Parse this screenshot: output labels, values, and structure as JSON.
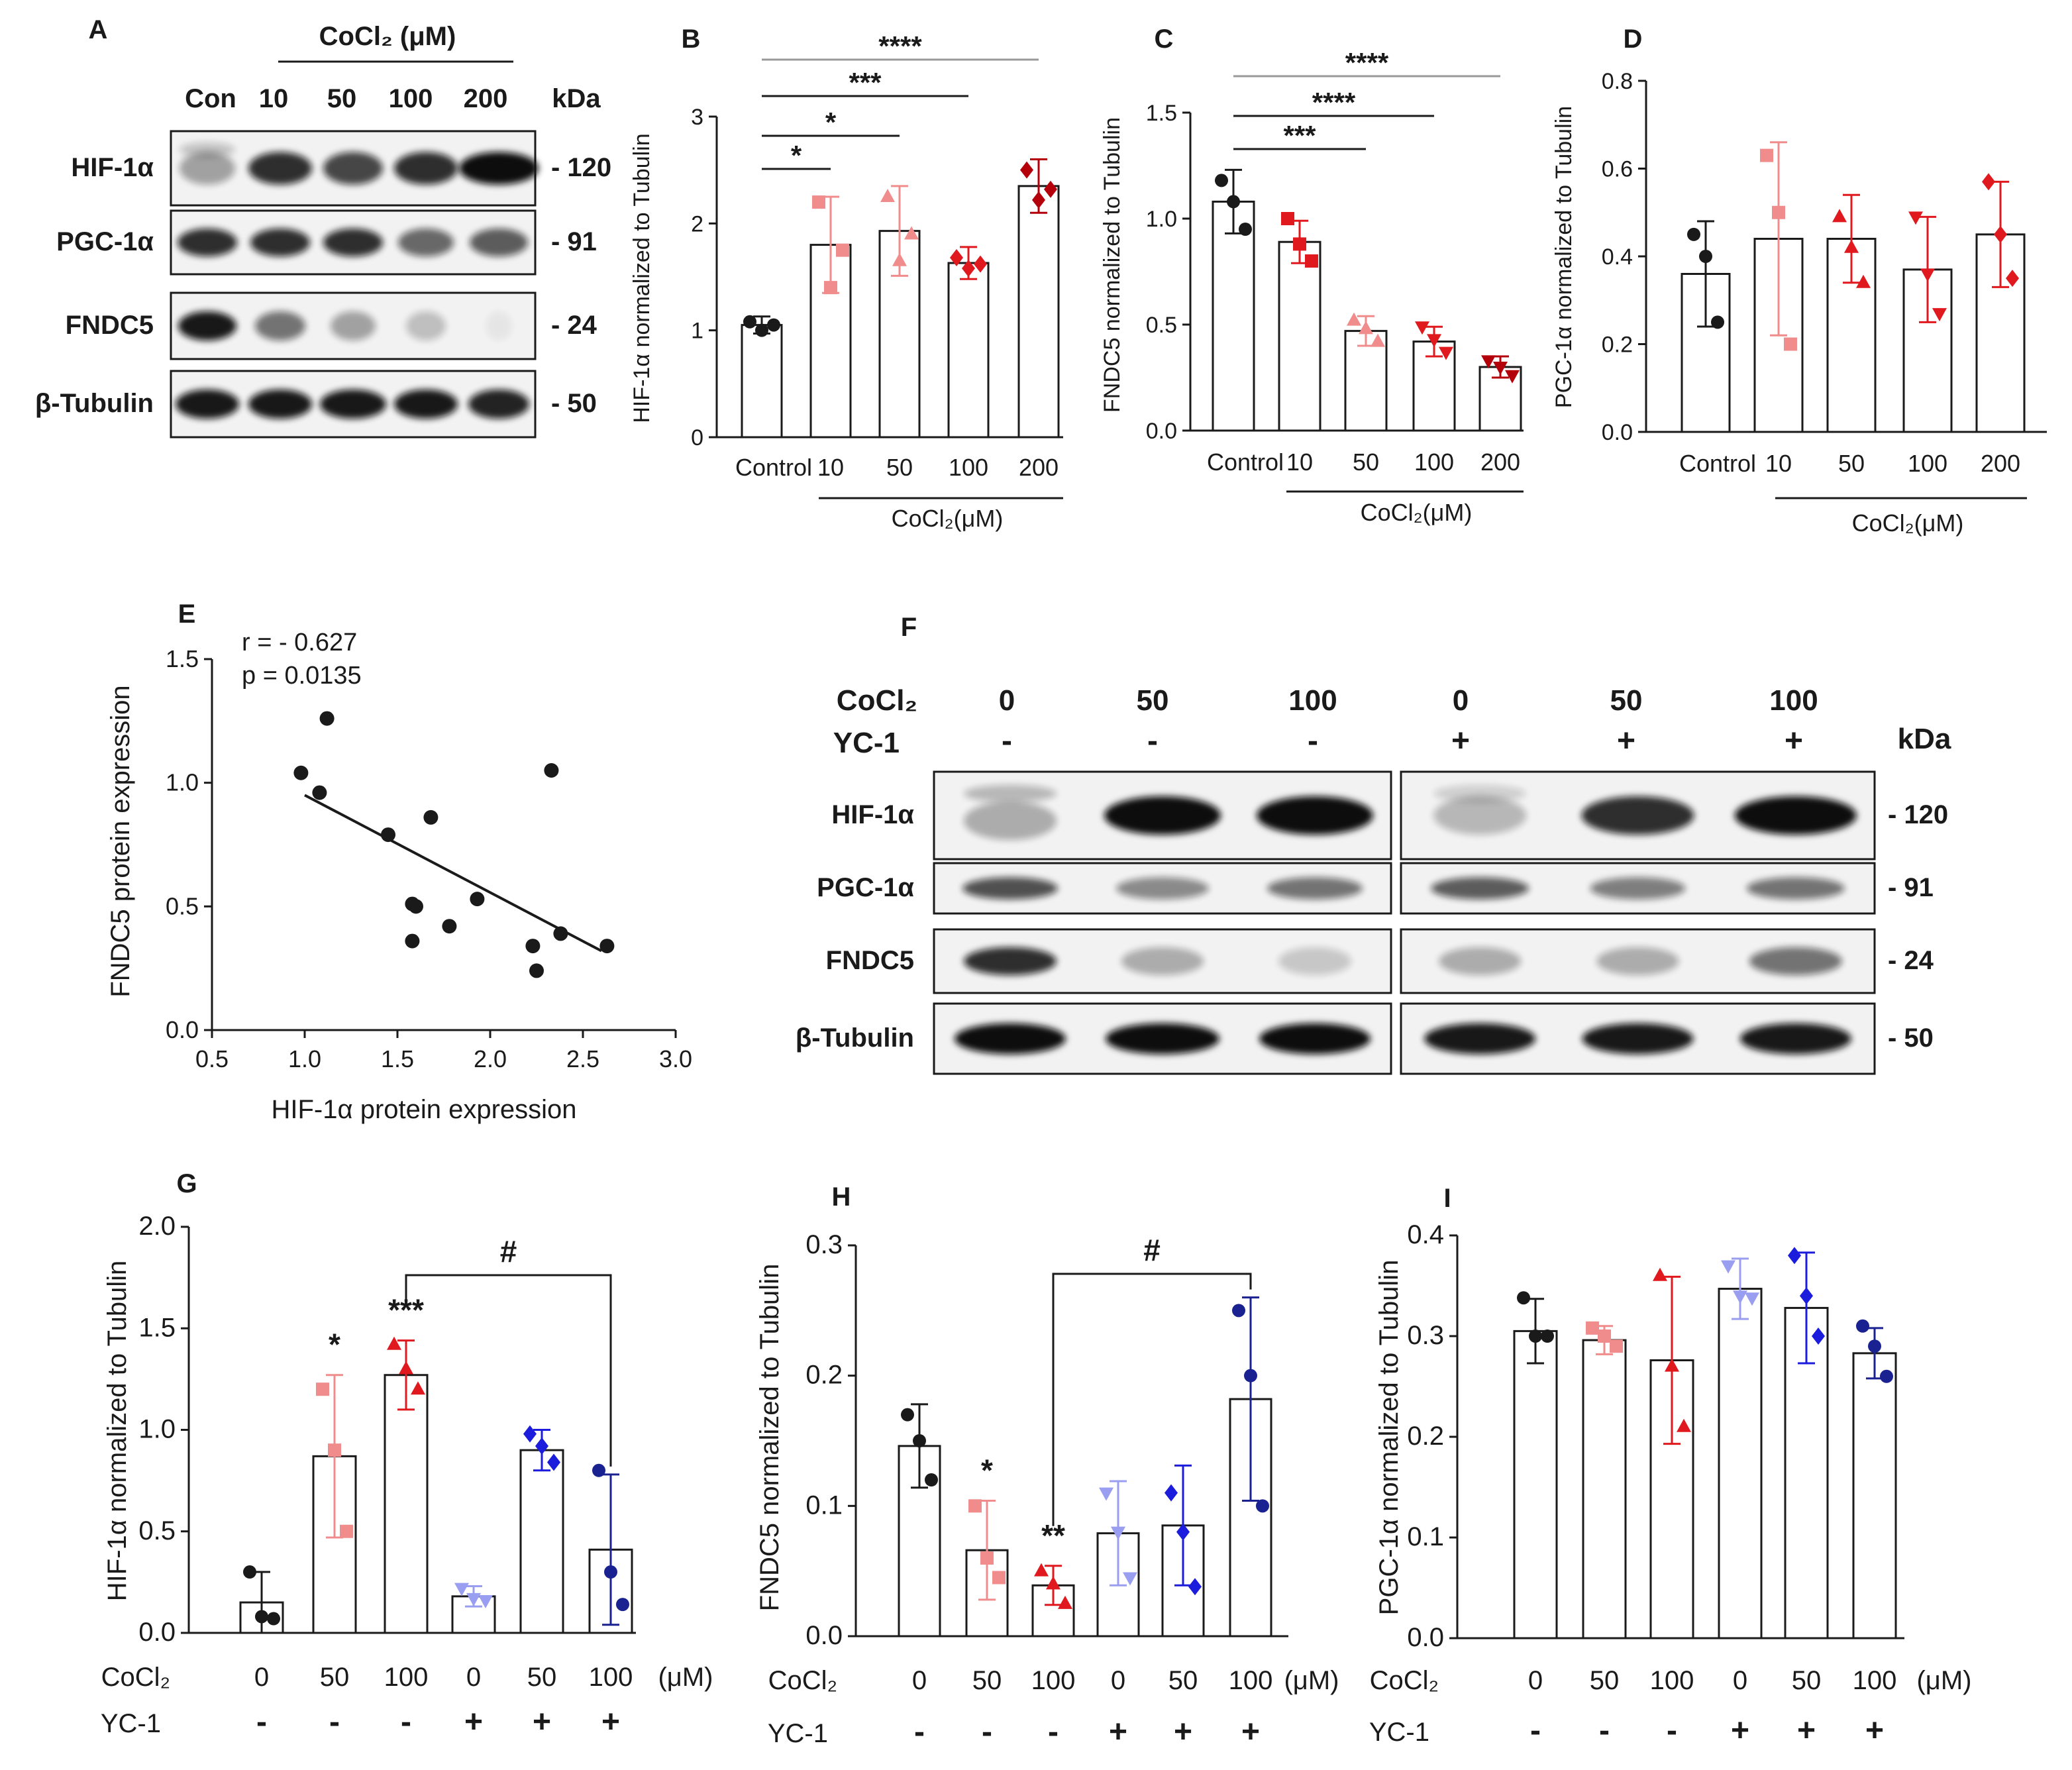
{
  "colors": {
    "black": "#1a1a1a",
    "pink": "#f08c8c",
    "red": "#e0191e",
    "darkred": "#b4000a",
    "lightblue": "#9a9ef0",
    "blue": "#1c1cdc",
    "navy": "#1a2190",
    "sigline": "#999999"
  },
  "blotA": {
    "label": "A",
    "header": "CoCl₂ (μM)",
    "lanes": [
      "Con",
      "10",
      "50",
      "100",
      "200"
    ],
    "kda_label": "kDa",
    "rows": [
      {
        "name": "HIF-1α",
        "kda": "- 120"
      },
      {
        "name": "PGC-1α",
        "kda": "- 91"
      },
      {
        "name": "FNDC5",
        "kda": "- 24"
      },
      {
        "name": "β-Tubulin",
        "kda": "- 50"
      }
    ]
  },
  "blotF": {
    "label": "F",
    "cocl2_label": "CoCl₂",
    "yc1_label": "YC-1",
    "cocl2": [
      "0",
      "50",
      "100",
      "0",
      "50",
      "100"
    ],
    "yc1": [
      "-",
      "-",
      "-",
      "+",
      "+",
      "+"
    ],
    "kda_label": "kDa",
    "rows": [
      {
        "name": "HIF-1α",
        "kda": "- 120"
      },
      {
        "name": "PGC-1α",
        "kda": "- 91"
      },
      {
        "name": "FNDC5",
        "kda": "- 24"
      },
      {
        "name": "β-Tubulin",
        "kda": "- 50"
      }
    ]
  },
  "chart_data": [
    {
      "id": "B",
      "label": "B",
      "type": "bar",
      "ylabel": "HIF-1α normalized to Tubulin",
      "ylim": [
        0,
        3
      ],
      "ticks": [
        "0",
        "1",
        "2",
        "3"
      ],
      "categories": [
        "Control",
        "10",
        "50",
        "100",
        "200"
      ],
      "group_label": "CoCl₂(μM)",
      "values": [
        1.05,
        1.8,
        1.93,
        1.63,
        2.35
      ],
      "errors": [
        0.08,
        0.45,
        0.42,
        0.15,
        0.25
      ],
      "points": [
        [
          1.08,
          1.0,
          1.05
        ],
        [
          2.2,
          1.4,
          1.75
        ],
        [
          2.25,
          1.65,
          1.9
        ],
        [
          1.68,
          1.58,
          1.62
        ],
        [
          2.5,
          2.22,
          2.32
        ]
      ],
      "sig": [
        {
          "text": "*",
          "from": 0,
          "to": 1
        },
        {
          "text": "*",
          "from": 0,
          "to": 2
        },
        {
          "text": "***",
          "from": 0,
          "to": 3
        },
        {
          "text": "****",
          "from": 0,
          "to": 4
        }
      ]
    },
    {
      "id": "C",
      "label": "C",
      "type": "bar",
      "ylabel": "FNDC5 normalized to Tubulin",
      "ylim": [
        0,
        1.5
      ],
      "ticks": [
        "0.0",
        "0.5",
        "1.0",
        "1.5"
      ],
      "categories": [
        "Control",
        "10",
        "50",
        "100",
        "200"
      ],
      "group_label": "CoCl₂(μM)",
      "values": [
        1.08,
        0.89,
        0.47,
        0.42,
        0.3
      ],
      "errors": [
        0.15,
        0.1,
        0.07,
        0.07,
        0.05
      ],
      "points": [
        [
          1.18,
          1.08,
          0.95
        ],
        [
          1.0,
          0.88,
          0.8
        ],
        [
          0.52,
          0.48,
          0.42
        ],
        [
          0.49,
          0.43,
          0.37
        ],
        [
          0.33,
          0.3,
          0.26
        ]
      ],
      "sig": [
        {
          "text": "***",
          "from": 0,
          "to": 2
        },
        {
          "text": "****",
          "from": 0,
          "to": 3
        },
        {
          "text": "****",
          "from": 0,
          "to": 4
        }
      ]
    },
    {
      "id": "D",
      "label": "D",
      "type": "bar",
      "ylabel": "PGC-1α normalized to Tubulin",
      "ylim": [
        0,
        0.8
      ],
      "ticks": [
        "0.0",
        "0.2",
        "0.4",
        "0.6",
        "0.8"
      ],
      "categories": [
        "Control",
        "10",
        "50",
        "100",
        "200"
      ],
      "group_label": "CoCl₂(μM)",
      "values": [
        0.36,
        0.44,
        0.44,
        0.37,
        0.45
      ],
      "errors": [
        0.12,
        0.22,
        0.1,
        0.12,
        0.12
      ],
      "points": [
        [
          0.45,
          0.4,
          0.25
        ],
        [
          0.63,
          0.5,
          0.2
        ],
        [
          0.49,
          0.42,
          0.34
        ],
        [
          0.49,
          0.36,
          0.27
        ],
        [
          0.57,
          0.45,
          0.35
        ]
      ],
      "sig": []
    },
    {
      "id": "E",
      "label": "E",
      "type": "scatter",
      "xlabel": "HIF-1α protein expression",
      "ylabel": "FNDC5 protein expression",
      "xlim": [
        0.5,
        3.0
      ],
      "ylim": [
        0,
        1.5
      ],
      "xticks": [
        "0.5",
        "1.0",
        "1.5",
        "2.0",
        "2.5",
        "3.0"
      ],
      "yticks": [
        "0.0",
        "0.5",
        "1.0",
        "1.5"
      ],
      "r_text": "r  = - 0.627",
      "p_text": "p = 0.0135",
      "x": [
        0.98,
        1.08,
        1.12,
        1.45,
        1.58,
        1.58,
        1.6,
        1.68,
        1.78,
        1.93,
        2.23,
        2.25,
        2.33,
        2.38,
        2.63
      ],
      "y": [
        1.04,
        0.96,
        1.26,
        0.79,
        0.51,
        0.36,
        0.5,
        0.86,
        0.42,
        0.53,
        0.34,
        0.24,
        1.05,
        0.39,
        0.34
      ],
      "fit": [
        [
          1.0,
          0.95
        ],
        [
          2.6,
          0.32
        ]
      ]
    },
    {
      "id": "G",
      "label": "G",
      "type": "bar",
      "ylabel": "HIF-1α normalized to Tubulin",
      "ylim": [
        0,
        2.0
      ],
      "ticks": [
        "0.0",
        "0.5",
        "1.0",
        "1.5",
        "2.0"
      ],
      "cocl2": [
        "0",
        "50",
        "100",
        "0",
        "50",
        "100"
      ],
      "yc1": [
        "-",
        "-",
        "-",
        "+",
        "+",
        "+"
      ],
      "unit": "(μM)",
      "cocl2_label": "CoCl₂",
      "yc1_label": "YC-1",
      "values": [
        0.15,
        0.87,
        1.27,
        0.18,
        0.9,
        0.41
      ],
      "errors": [
        0.15,
        0.4,
        0.17,
        0.05,
        0.1,
        0.37
      ],
      "points": [
        [
          0.3,
          0.08,
          0.07
        ],
        [
          1.2,
          0.9,
          0.5
        ],
        [
          1.42,
          1.3,
          1.2
        ],
        [
          0.22,
          0.17,
          0.16
        ],
        [
          0.98,
          0.92,
          0.84
        ],
        [
          0.8,
          0.3,
          0.14
        ]
      ],
      "star_labels": [
        "",
        "*",
        "***",
        "",
        "",
        ""
      ],
      "hash_text": "#",
      "hash_from": 2,
      "hash_to": 5
    },
    {
      "id": "H",
      "label": "H",
      "type": "bar",
      "ylabel": "FNDC5  normalized to Tubulin",
      "ylim": [
        0,
        0.3
      ],
      "ticks": [
        "0.0",
        "0.1",
        "0.2",
        "0.3"
      ],
      "cocl2": [
        "0",
        "50",
        "100",
        "0",
        "50",
        "100"
      ],
      "yc1": [
        "-",
        "-",
        "-",
        "+",
        "+",
        "+"
      ],
      "unit": "(μM)",
      "cocl2_label": "CoCl₂",
      "yc1_label": "YC-1",
      "values": [
        0.146,
        0.066,
        0.039,
        0.079,
        0.085,
        0.182
      ],
      "errors": [
        0.032,
        0.038,
        0.015,
        0.04,
        0.046,
        0.078
      ],
      "points": [
        [
          0.17,
          0.15,
          0.12
        ],
        [
          0.1,
          0.06,
          0.045
        ],
        [
          0.05,
          0.04,
          0.025
        ],
        [
          0.11,
          0.08,
          0.045
        ],
        [
          0.11,
          0.08,
          0.038
        ],
        [
          0.25,
          0.2,
          0.1
        ]
      ],
      "star_labels": [
        "",
        "*",
        "**",
        "",
        "",
        ""
      ],
      "hash_text": "#",
      "hash_from": 2,
      "hash_to": 5
    },
    {
      "id": "I",
      "label": "I",
      "type": "bar",
      "ylabel": "PGC-1α normalized to Tubulin",
      "ylim": [
        0,
        0.4
      ],
      "ticks": [
        "0.0",
        "0.1",
        "0.2",
        "0.3",
        "0.4"
      ],
      "cocl2": [
        "0",
        "50",
        "100",
        "0",
        "50",
        "100"
      ],
      "yc1": [
        "-",
        "-",
        "-",
        "+",
        "+",
        "+"
      ],
      "unit": "(μM)",
      "cocl2_label": "CoCl₂",
      "yc1_label": "YC-1",
      "values": [
        0.305,
        0.296,
        0.276,
        0.347,
        0.328,
        0.283
      ],
      "errors": [
        0.032,
        0.014,
        0.083,
        0.03,
        0.055,
        0.025
      ],
      "points": [
        [
          0.338,
          0.3,
          0.3
        ],
        [
          0.308,
          0.3,
          0.29
        ],
        [
          0.36,
          0.27,
          0.21
        ],
        [
          0.37,
          0.34,
          0.338
        ],
        [
          0.38,
          0.34,
          0.3
        ],
        [
          0.31,
          0.29,
          0.26
        ]
      ],
      "star_labels": [
        "",
        "",
        "",
        "",
        "",
        ""
      ],
      "hash_text": "",
      "hash_from": 0,
      "hash_to": 0
    }
  ]
}
